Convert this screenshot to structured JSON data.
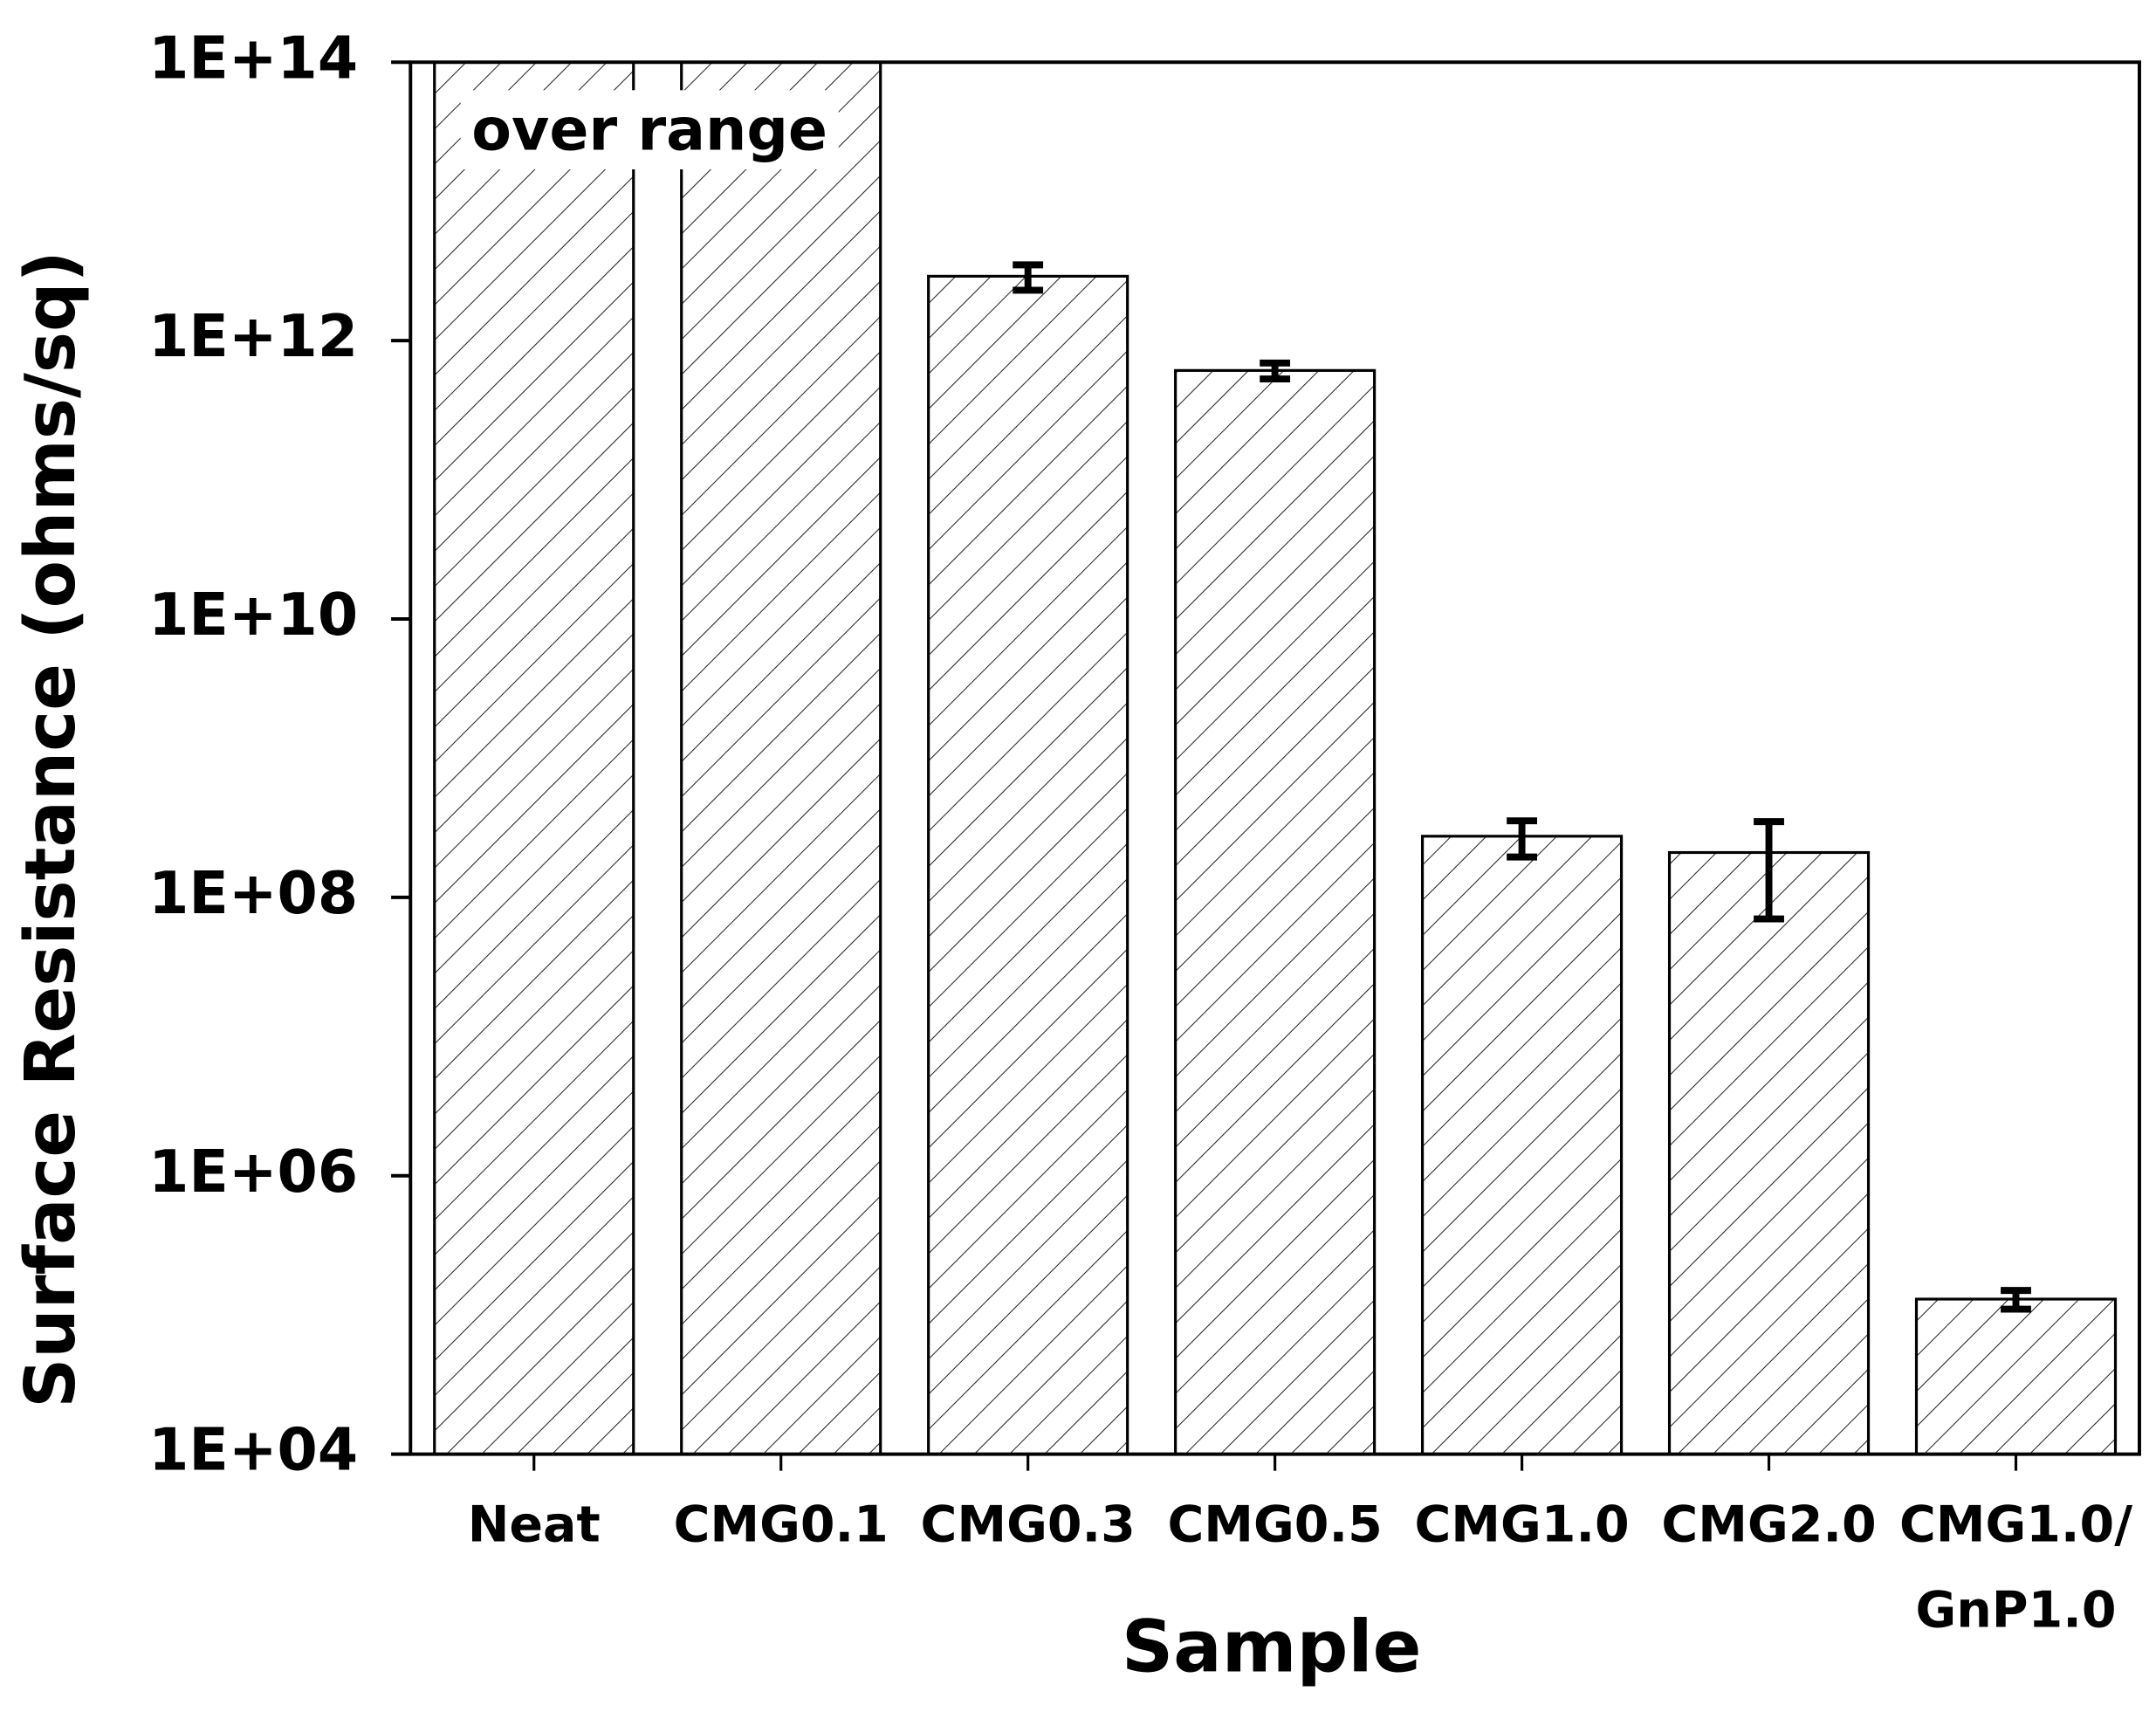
{
  "chart_data": {
    "type": "bar",
    "y_label": "Surface Resistance (ohms/sq)",
    "x_label": "Sample",
    "annotation": "over range",
    "categories": [
      "Neat",
      "CMG0.1",
      "CMG0.3",
      "CMG0.5",
      "CMG1.0",
      "CMG2.0",
      "CMG1.0/\nGnP1.0"
    ],
    "values": [
      100000000000000,
      100000000000000,
      2900000000000,
      610000000000,
      275000000,
      210000000,
      130000
    ],
    "errors": [
      null,
      null,
      600000000000,
      80000000000,
      80000000,
      140000000,
      20000
    ],
    "color": "#000000",
    "y_log": true,
    "ylim": [
      10000,
      100000000000000
    ],
    "yticks": [
      {
        "value": 10000,
        "label": "1E+04"
      },
      {
        "value": 1000000,
        "label": "1E+06"
      },
      {
        "value": 100000000,
        "label": "1E+08"
      },
      {
        "value": 10000000000,
        "label": "1E+10"
      },
      {
        "value": 1000000000000,
        "label": "1E+12"
      },
      {
        "value": 100000000000000,
        "label": "1E+14"
      }
    ],
    "grid": false
  }
}
